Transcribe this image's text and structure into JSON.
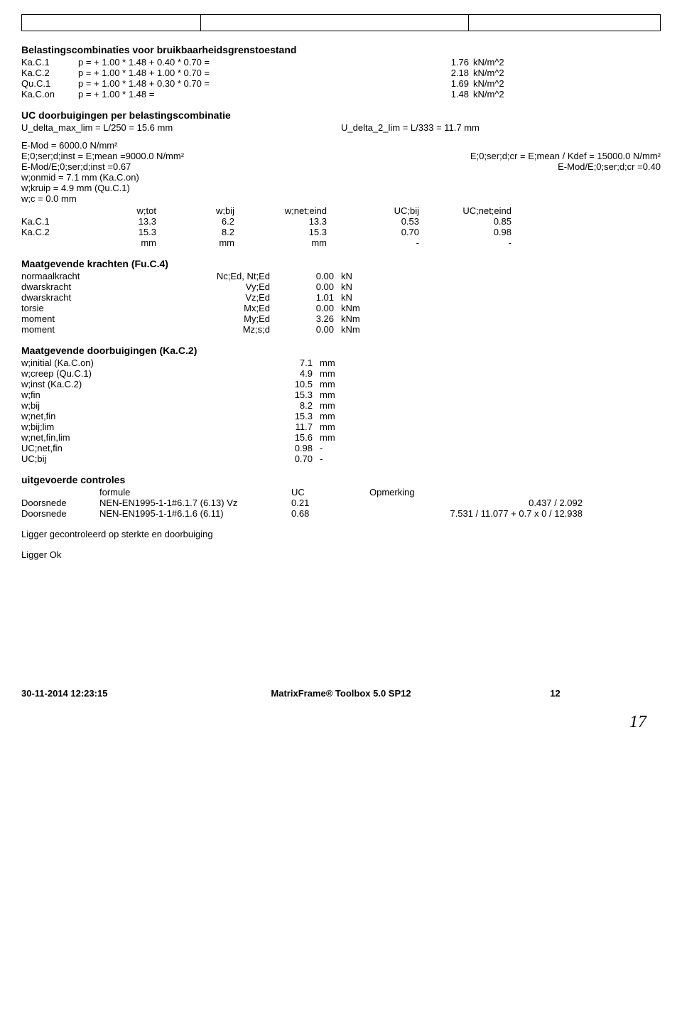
{
  "headings": {
    "h1": "Belastingscombinaties voor bruikbaarheidsgrenstoestand",
    "h2": "UC doorbuigingen per belastingscombinatie",
    "h3": "Maatgevende krachten (Fu.C.4)",
    "h4": "Maatgevende doorbuigingen (Ka.C.2)",
    "h5": "uitgevoerde controles"
  },
  "combos": [
    {
      "label": "Ka.C.1",
      "eq": "p =  + 1.00 * 1.48 + 0.40 * 0.70 =",
      "val": "1.76",
      "unit": "kN/m^2"
    },
    {
      "label": "Ka.C.2",
      "eq": "p =  + 1.00 * 1.48 + 1.00 * 0.70 =",
      "val": "2.18",
      "unit": "kN/m^2"
    },
    {
      "label": "Qu.C.1",
      "eq": "p =  + 1.00 * 1.48 + 0.30 * 0.70 =",
      "val": "1.69",
      "unit": "kN/m^2"
    },
    {
      "label": "Ka.C.on",
      "eq": "p =  + 1.00 * 1.48 =",
      "val": "1.48",
      "unit": "kN/m^2"
    }
  ],
  "uc_line": {
    "left": "U_delta_max_lim = L/250 = 15.6 mm",
    "right": "U_delta_2_lim = L/333 = 11.7 mm"
  },
  "params_left": [
    "E-Mod = 6000.0 N/mm²",
    "E;0;ser;d;inst = E;mean =9000.0 N/mm²",
    "E-Mod/E;0;ser;d;inst =0.67",
    "w;onmid = 7.1 mm (Ka.C.on)",
    "w;kruip = 4.9 mm (Qu.C.1)",
    "w;c = 0.0 mm"
  ],
  "params_right": [
    "",
    "E;0;ser;d;cr = E;mean / Kdef = 15000.0 N/mm²",
    "E-Mod/E;0;ser;d;cr =0.40"
  ],
  "wtable": {
    "headers": [
      "",
      "w;tot",
      "w;bij",
      "w;net;eind",
      "UC;bij",
      "UC;net;eind"
    ],
    "rows": [
      [
        "Ka.C.1",
        "13.3",
        "6.2",
        "13.3",
        "0.53",
        "0.85"
      ],
      [
        "Ka.C.2",
        "15.3",
        "8.2",
        "15.3",
        "0.70",
        "0.98"
      ],
      [
        "",
        "mm",
        "mm",
        "mm",
        "-",
        "-"
      ]
    ]
  },
  "forces": [
    [
      "normaalkracht",
      "Nc;Ed, Nt;Ed",
      "0.00",
      "kN"
    ],
    [
      "dwarskracht",
      "Vy;Ed",
      "0.00",
      "kN"
    ],
    [
      "dwarskracht",
      "Vz;Ed",
      "1.01",
      "kN"
    ],
    [
      "torsie",
      "Mx;Ed",
      "0.00",
      "kNm"
    ],
    [
      "moment",
      "My;Ed",
      "3.26",
      "kNm"
    ],
    [
      "moment",
      "Mz;s;d",
      "0.00",
      "kNm"
    ]
  ],
  "deflections": [
    [
      "w;initial (Ka.C.on)",
      "7.1",
      "mm"
    ],
    [
      "w;creep (Qu.C.1)",
      "4.9",
      "mm"
    ],
    [
      "w;inst (Ka.C.2)",
      "10.5",
      "mm"
    ],
    [
      "w;fin",
      "15.3",
      "mm"
    ],
    [
      "w;bij",
      "8.2",
      "mm"
    ],
    [
      "w;net,fin",
      "15.3",
      "mm"
    ],
    [
      "w;bij;lim",
      "11.7",
      "mm"
    ],
    [
      "w;net,fin,lim",
      "15.6",
      "mm"
    ],
    [
      "UC;net,fin",
      "0.98",
      "-"
    ],
    [
      "UC;bij",
      "0.70",
      "-"
    ]
  ],
  "controls": {
    "headers": [
      "",
      "formule",
      "UC",
      "Opmerking"
    ],
    "rows": [
      [
        "Doorsnede",
        "NEN-EN1995-1-1#6.1.7 (6.13) Vz",
        "0.21",
        "0.437 / 2.092"
      ],
      [
        "Doorsnede",
        "NEN-EN1995-1-1#6.1.6 (6.11)",
        "0.68",
        "7.531 / 11.077 + 0.7 x 0 / 12.938"
      ]
    ]
  },
  "notes": {
    "n1": "Ligger gecontroleerd op sterkte en doorbuiging",
    "n2": "Ligger Ok"
  },
  "footer": {
    "date": "30-11-2014  12:23:15",
    "product": "MatrixFrame® Toolbox 5.0 SP12",
    "page": "12"
  },
  "scribble": "17"
}
